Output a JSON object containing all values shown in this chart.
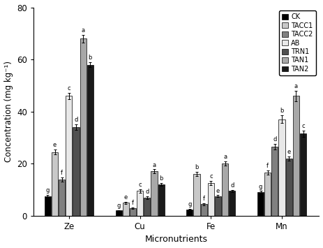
{
  "categories": [
    "Ze",
    "Cu",
    "Fe",
    "Mn"
  ],
  "groups": [
    "CK",
    "TACC1",
    "TACC2",
    "AB",
    "TRN1",
    "TAN1",
    "TAN2"
  ],
  "colors": [
    "#000000",
    "#c8c8c8",
    "#808080",
    "#e8e8e8",
    "#505050",
    "#a8a8a8",
    "#1a1a1a"
  ],
  "values": {
    "Ze": [
      7.5,
      24.5,
      14.0,
      46.0,
      34.0,
      68.0,
      58.0
    ],
    "Cu": [
      2.0,
      5.0,
      3.0,
      9.5,
      7.0,
      17.0,
      12.0
    ],
    "Fe": [
      2.5,
      16.0,
      4.5,
      12.5,
      7.5,
      20.0,
      9.5
    ],
    "Mn": [
      9.0,
      16.5,
      26.5,
      37.0,
      22.0,
      46.0,
      31.5
    ]
  },
  "errors": {
    "Ze": [
      0.5,
      1.0,
      0.8,
      1.2,
      1.0,
      1.5,
      1.0
    ],
    "Cu": [
      0.2,
      0.4,
      0.3,
      0.6,
      0.5,
      0.8,
      0.6
    ],
    "Fe": [
      0.2,
      0.8,
      0.4,
      0.8,
      0.4,
      0.8,
      0.5
    ],
    "Mn": [
      0.5,
      0.8,
      1.0,
      1.5,
      0.8,
      2.0,
      1.2
    ]
  },
  "letters": {
    "Ze": [
      "g",
      "e",
      "f",
      "c",
      "d",
      "a",
      "b"
    ],
    "Cu": [
      "g",
      "e",
      "f",
      "c",
      "d",
      "a",
      "b"
    ],
    "Fe": [
      "g",
      "b",
      "f",
      "c",
      "e",
      "a",
      "d"
    ],
    "Mn": [
      "g",
      "f",
      "d",
      "b",
      "e",
      "a",
      "c"
    ]
  },
  "ylabel": "Concentration (mg kg⁻¹)",
  "xlabel": "Micronutrients",
  "ylim": [
    0,
    80
  ],
  "yticks": [
    0,
    20,
    40,
    60,
    80
  ],
  "bar_width": 0.08,
  "figsize": [
    4.63,
    3.55
  ],
  "dpi": 100,
  "legend_labels": [
    "CK",
    "TACC1",
    "TACC2",
    "AB",
    "TRN1",
    "TAN1",
    "TAN2"
  ]
}
